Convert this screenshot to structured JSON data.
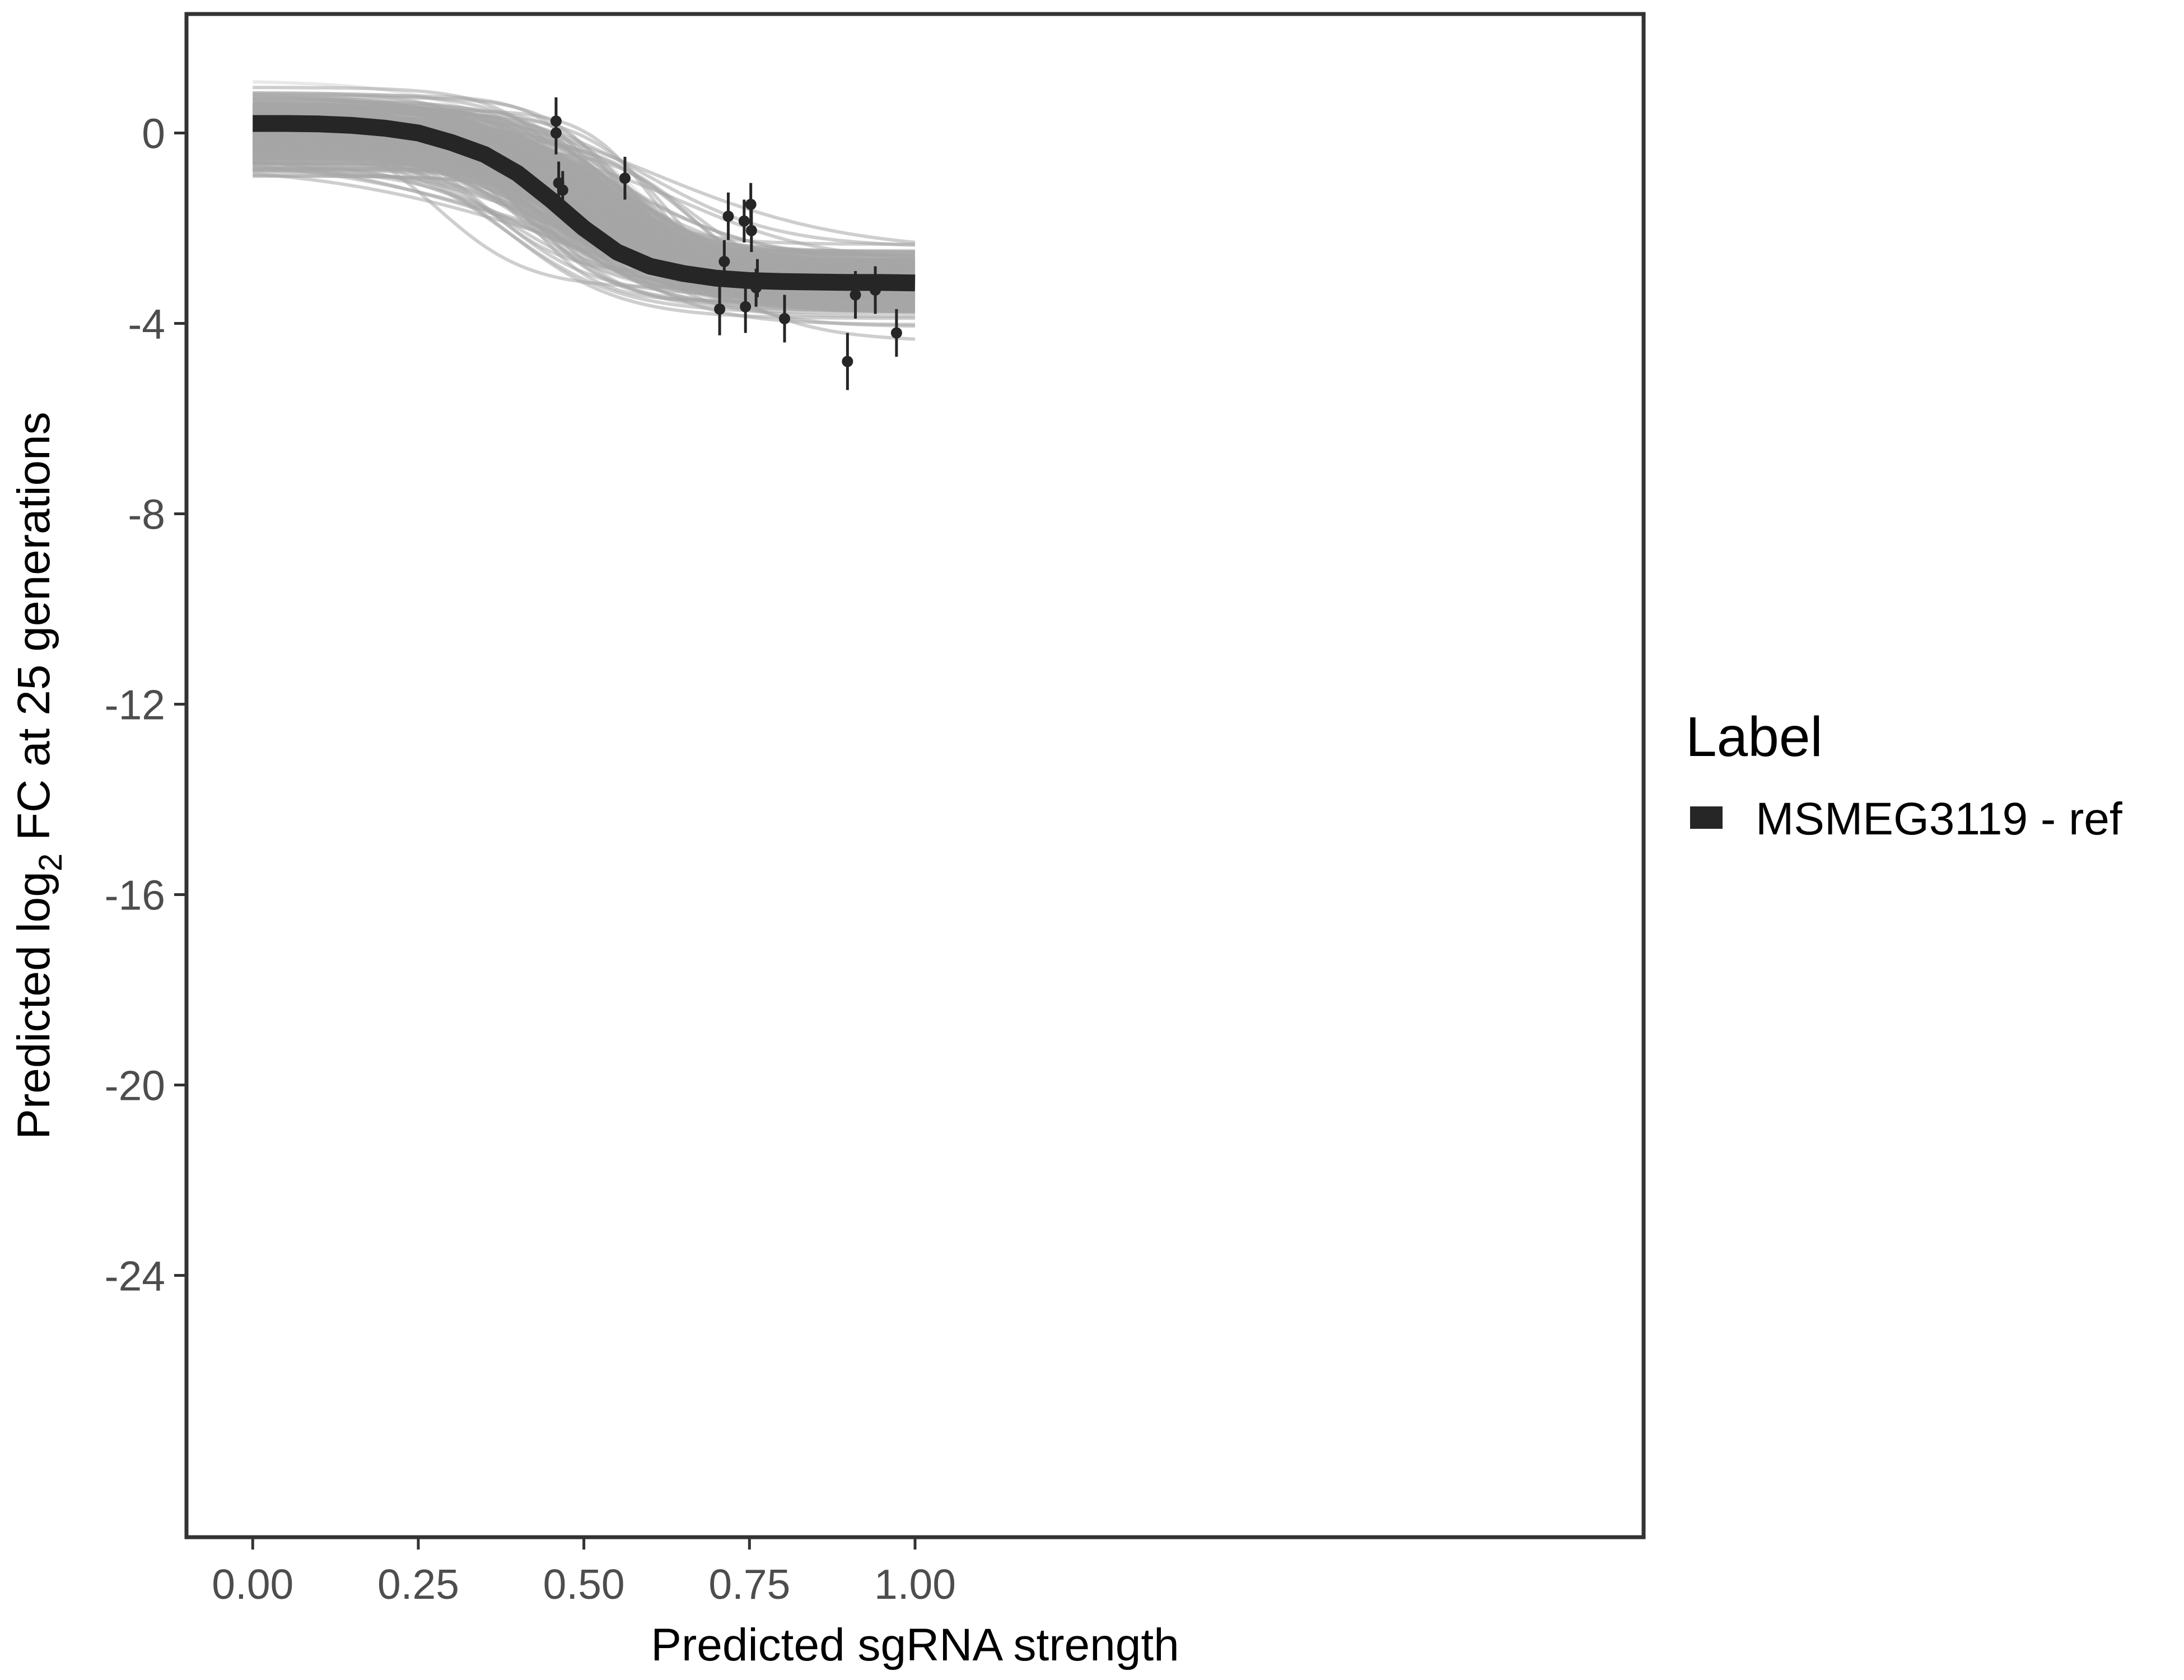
{
  "chart_data": {
    "type": "line",
    "title": "",
    "xlabel": "Predicted sgRNA strength",
    "ylabel": {
      "prefix": "Predicted  log",
      "subscript": "2",
      "suffix": " FC at 25 generations"
    },
    "xlim": [
      -0.1,
      2.1
    ],
    "ylim": [
      -29.5,
      2.5
    ],
    "x_ticks": [
      0,
      0.25,
      0.5,
      0.75,
      1.0
    ],
    "x_tick_labels": [
      "0.00",
      "0.25",
      "0.50",
      "0.75",
      "1.00"
    ],
    "y_ticks": [
      0,
      -4,
      -8,
      -12,
      -16,
      -20,
      -24
    ],
    "y_tick_labels": [
      "0",
      "-4",
      "-8",
      "-12",
      "-16",
      "-20",
      "-24"
    ],
    "grid": false,
    "legend": {
      "position": "right",
      "title": "Label",
      "entries": [
        {
          "name": "MSMEG3119 - ref",
          "color": "#262626"
        }
      ]
    },
    "colors": {
      "fit_line": "#262626",
      "posterior_lines": "#a6a6a6",
      "points": "#262626",
      "panel_border": "#333333"
    },
    "fit": {
      "name": "MSMEG3119 - ref",
      "x": [
        0.0,
        0.05,
        0.1,
        0.15,
        0.2,
        0.25,
        0.3,
        0.35,
        0.4,
        0.45,
        0.5,
        0.55,
        0.6,
        0.65,
        0.7,
        0.75,
        0.8,
        0.85,
        0.9,
        0.95,
        1.0
      ],
      "y": [
        0.2,
        0.2,
        0.19,
        0.16,
        0.1,
        0.0,
        -0.2,
        -0.45,
        -0.85,
        -1.4,
        -2.0,
        -2.5,
        -2.8,
        -2.95,
        -3.05,
        -3.1,
        -3.12,
        -3.13,
        -3.14,
        -3.14,
        -3.15
      ]
    },
    "points": [
      {
        "x": 0.458,
        "y": 0.25,
        "err": 0.5
      },
      {
        "x": 0.458,
        "y": 0.0,
        "err": 0.45
      },
      {
        "x": 0.462,
        "y": -1.05,
        "err": 0.45
      },
      {
        "x": 0.468,
        "y": -1.2,
        "err": 0.4
      },
      {
        "x": 0.562,
        "y": -0.95,
        "err": 0.45
      },
      {
        "x": 0.705,
        "y": -3.7,
        "err": 0.55
      },
      {
        "x": 0.712,
        "y": -2.7,
        "err": 0.45
      },
      {
        "x": 0.718,
        "y": -1.75,
        "err": 0.5
      },
      {
        "x": 0.742,
        "y": -1.85,
        "err": 0.45
      },
      {
        "x": 0.744,
        "y": -3.65,
        "err": 0.55
      },
      {
        "x": 0.752,
        "y": -1.5,
        "err": 0.45
      },
      {
        "x": 0.753,
        "y": -2.05,
        "err": 0.45
      },
      {
        "x": 0.76,
        "y": -3.25,
        "err": 0.4
      },
      {
        "x": 0.762,
        "y": -3.05,
        "err": 0.4
      },
      {
        "x": 0.803,
        "y": -3.9,
        "err": 0.5
      },
      {
        "x": 0.898,
        "y": -4.8,
        "err": 0.6
      },
      {
        "x": 0.91,
        "y": -3.4,
        "err": 0.5
      },
      {
        "x": 0.94,
        "y": -3.3,
        "err": 0.5
      },
      {
        "x": 0.972,
        "y": -4.2,
        "err": 0.5
      }
    ]
  }
}
